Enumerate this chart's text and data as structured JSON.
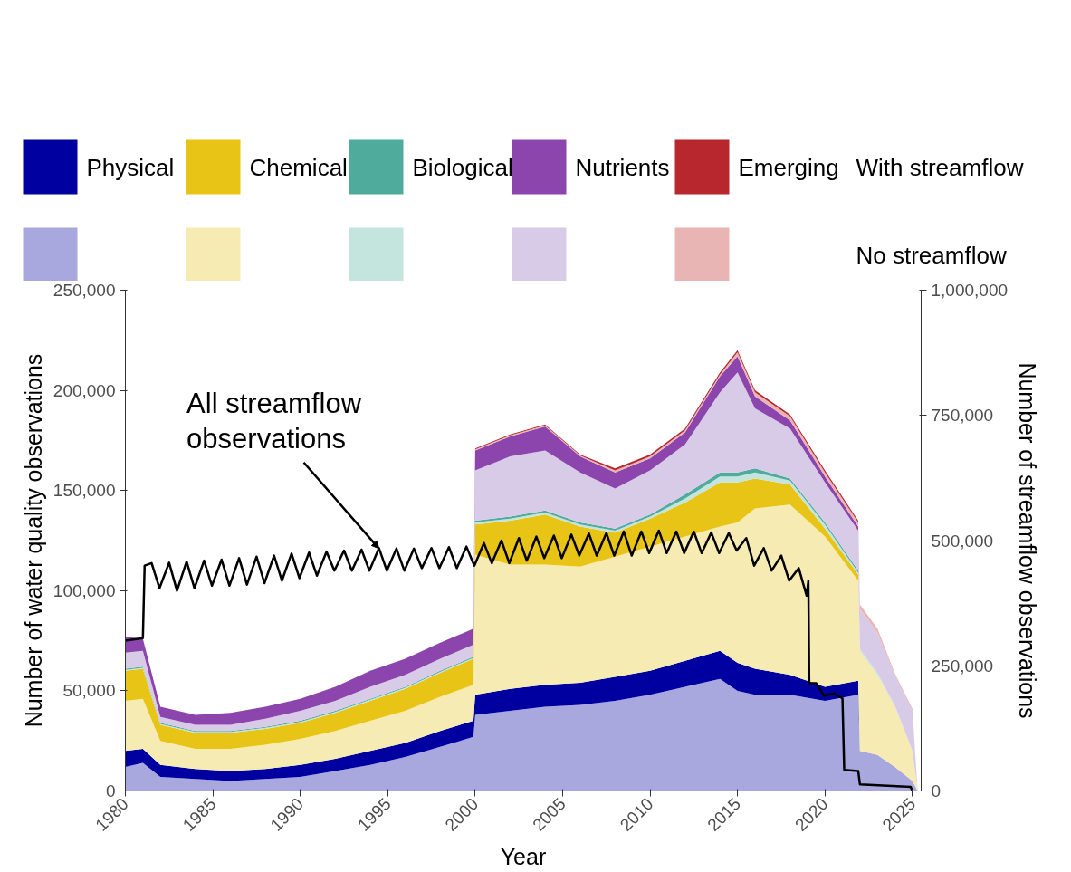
{
  "chart_data": {
    "type": "area",
    "stacked": true,
    "xlabel": "Year",
    "ylabel": "Number of water quality observations",
    "y2label": "Number of streamflow observations",
    "legend": "top",
    "grid": false,
    "x": [
      1980,
      1981,
      1982,
      1984,
      1986,
      1988,
      1990,
      1992,
      1994,
      1996,
      1998,
      1999.9,
      2000,
      2002,
      2004,
      2006,
      2008,
      2010,
      2012,
      2014,
      2015,
      2016,
      2018,
      2020,
      2021.9,
      2022,
      2023,
      2024,
      2025,
      2025.3
    ],
    "xlim": [
      1980,
      2025.5
    ],
    "xticks": [
      1980,
      1985,
      1990,
      1995,
      2000,
      2005,
      2010,
      2015,
      2020,
      2025
    ],
    "ylim": [
      0,
      250000
    ],
    "yticks": [
      0,
      {
        "value": 50000,
        "label": "50,000"
      },
      {
        "value": 100000,
        "label": "100,000"
      },
      {
        "value": 150000,
        "label": "150,000"
      },
      {
        "value": 200000,
        "label": "200,000"
      },
      {
        "value": 250000,
        "label": "250,000"
      }
    ],
    "y2lim": [
      0,
      1000000
    ],
    "y2ticks": [
      0,
      {
        "value": 250000,
        "label": "250,000"
      },
      {
        "value": 500000,
        "label": "500,000"
      },
      {
        "value": 750000,
        "label": "750,000"
      },
      {
        "value": 1000000,
        "label": "1,000,000"
      }
    ],
    "series": [
      {
        "color": "#a8a8de",
        "values": [
          12000,
          14000,
          7000,
          6000,
          5000,
          6000,
          7000,
          10000,
          13000,
          17000,
          22000,
          27000,
          38000,
          40000,
          42000,
          43000,
          45000,
          48000,
          52000,
          56000,
          50000,
          48000,
          48000,
          45000,
          48000,
          20000,
          18000,
          12000,
          5000,
          0
        ]
      },
      {
        "name": "Physical",
        "color": "#0000a0",
        "values": [
          8000,
          7000,
          6000,
          5000,
          5000,
          5000,
          6000,
          6000,
          7000,
          7000,
          8000,
          8000,
          10000,
          11000,
          11000,
          11000,
          12000,
          12000,
          13000,
          14000,
          14000,
          13000,
          10000,
          7000,
          7000,
          0,
          0,
          0,
          0,
          0
        ]
      },
      {
        "color": "#f6ebb2",
        "values": [
          25000,
          25000,
          12000,
          10000,
          11000,
          12000,
          13000,
          14000,
          15000,
          16000,
          17000,
          18000,
          70000,
          62000,
          60000,
          58000,
          60000,
          62000,
          62000,
          62000,
          70000,
          80000,
          85000,
          75000,
          50000,
          50000,
          40000,
          30000,
          15000,
          0
        ]
      },
      {
        "name": "Chemical",
        "color": "#e8c416",
        "values": [
          15000,
          15000,
          8000,
          8000,
          8000,
          8000,
          8000,
          9000,
          10000,
          11000,
          12000,
          13000,
          15000,
          22000,
          25000,
          20000,
          12000,
          14000,
          17000,
          22000,
          20000,
          15000,
          10000,
          4000,
          3000,
          0,
          0,
          0,
          0,
          0
        ]
      },
      {
        "color": "#c4e4de",
        "values": [
          500,
          500,
          500,
          500,
          500,
          500,
          500,
          500,
          500,
          500,
          500,
          500,
          1000,
          1000,
          1000,
          1000,
          1000,
          1000,
          2000,
          3000,
          3000,
          3000,
          2000,
          2000,
          1000,
          1000,
          1000,
          500,
          0,
          0
        ]
      },
      {
        "name": "Biological",
        "color": "#4fab9c",
        "values": [
          500,
          500,
          500,
          500,
          500,
          500,
          500,
          500,
          500,
          500,
          500,
          500,
          1000,
          1000,
          1000,
          1000,
          1000,
          1000,
          2000,
          2000,
          2000,
          2000,
          1000,
          1000,
          1000,
          0,
          0,
          0,
          0,
          0
        ]
      },
      {
        "color": "#d8cbe8",
        "values": [
          8000,
          8000,
          3000,
          3000,
          3000,
          4000,
          5000,
          5000,
          6000,
          6000,
          6000,
          6000,
          25000,
          30000,
          30000,
          25000,
          20000,
          22000,
          25000,
          40000,
          50000,
          30000,
          25000,
          20000,
          20000,
          20000,
          20000,
          15000,
          20000,
          0
        ]
      },
      {
        "name": "Nutrients",
        "color": "#8b45ad",
        "values": [
          8000,
          6000,
          5000,
          5000,
          6000,
          6000,
          6000,
          7000,
          8000,
          8000,
          8000,
          8000,
          10000,
          10000,
          12000,
          8000,
          8000,
          6000,
          6000,
          8000,
          8000,
          6000,
          4000,
          3000,
          2000,
          0,
          0,
          0,
          0,
          0
        ]
      },
      {
        "color": "#e8b4b4",
        "values": [
          0,
          0,
          0,
          0,
          0,
          0,
          0,
          0,
          0,
          0,
          0,
          0,
          500,
          500,
          500,
          500,
          1000,
          1000,
          1000,
          1000,
          2000,
          2000,
          2000,
          2000,
          2000,
          2000,
          2000,
          1000,
          1000,
          0
        ]
      },
      {
        "name": "Emerging",
        "color": "#b8262e",
        "values": [
          0,
          0,
          0,
          0,
          0,
          0,
          0,
          0,
          0,
          0,
          0,
          0,
          500,
          500,
          500,
          500,
          1000,
          1000,
          1000,
          1000,
          1000,
          1000,
          1000,
          1000,
          1000,
          0,
          0,
          0,
          0,
          0
        ]
      },
      {
        "type": "line",
        "axis": "y2",
        "color": "#000000",
        "x": [
          1980,
          1981,
          1981.1,
          1981.5,
          1981.95,
          1982.5,
          1982.95,
          1983.5,
          1983.95,
          1984.5,
          1984.95,
          1985.5,
          1985.95,
          1986.5,
          1986.95,
          1987.5,
          1987.95,
          1988.5,
          1988.95,
          1989.5,
          1989.95,
          1990.5,
          1990.95,
          1991.5,
          1991.95,
          1992.5,
          1992.95,
          1993.5,
          1993.95,
          1994.5,
          1994.95,
          1995.5,
          1995.95,
          1996.5,
          1996.95,
          1997.5,
          1997.95,
          1998.5,
          1998.95,
          1999.5,
          1999.95,
          2000.5,
          2000.95,
          2001.5,
          2001.95,
          2002.5,
          2002.95,
          2003.5,
          2003.95,
          2004.5,
          2004.95,
          2005.5,
          2005.95,
          2006.5,
          2006.95,
          2007.5,
          2007.95,
          2008.5,
          2008.95,
          2009.5,
          2009.95,
          2010.5,
          2010.95,
          2011.5,
          2011.95,
          2012.5,
          2012.95,
          2013.5,
          2013.95,
          2014.5,
          2014.95,
          2015.5,
          2015.95,
          2016.5,
          2016.95,
          2017.5,
          2017.95,
          2018.5,
          2018.95,
          2019.05,
          2019.1,
          2019.5,
          2019.95,
          2020.5,
          2021,
          2021.1,
          2021.9,
          2022,
          2024.9,
          2025
        ],
        "values": [
          300000,
          305000,
          450000,
          455000,
          405000,
          456000,
          400000,
          458000,
          405000,
          460000,
          410000,
          462000,
          410000,
          465000,
          412000,
          468000,
          415000,
          470000,
          420000,
          474000,
          425000,
          476000,
          430000,
          478000,
          440000,
          480000,
          440000,
          482000,
          440000,
          485000,
          440000,
          484000,
          440000,
          484000,
          445000,
          485000,
          445000,
          487000,
          445000,
          488000,
          450000,
          495000,
          455000,
          500000,
          455000,
          505000,
          460000,
          508000,
          465000,
          510000,
          465000,
          512000,
          470000,
          514000,
          470000,
          515000,
          470000,
          518000,
          470000,
          518000,
          475000,
          520000,
          475000,
          518000,
          475000,
          518000,
          475000,
          516000,
          475000,
          515000,
          480000,
          505000,
          450000,
          485000,
          440000,
          470000,
          420000,
          445000,
          390000,
          420000,
          215000,
          215000,
          190000,
          195000,
          185000,
          42000,
          40000,
          13000,
          8000,
          0
        ]
      }
    ],
    "annotations": [
      {
        "text": "All streamflow\nobservations",
        "x": 1994.5,
        "y": 121000
      },
      "With streamflow",
      "No streamflow"
    ]
  }
}
